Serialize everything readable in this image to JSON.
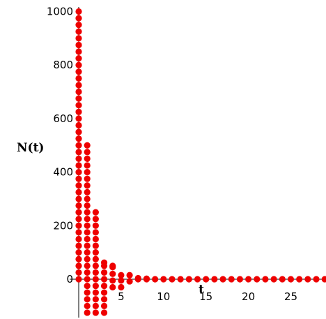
{
  "chart_data": {
    "type": "scatter",
    "title": "",
    "xlabel": "t",
    "ylabel": "N(t)",
    "xlim": [
      0,
      29
    ],
    "ylim": [
      -140,
      1000
    ],
    "x_ticks": [
      5,
      10,
      15,
      20,
      25
    ],
    "y_ticks": [
      0,
      200,
      400,
      600,
      800,
      1000
    ],
    "x_tick_labels": [
      "5",
      "10",
      "15",
      "20",
      "25"
    ],
    "y_tick_labels": [
      "0",
      "200",
      "400",
      "600",
      "800",
      "1000"
    ],
    "grid": false,
    "legend": "none",
    "marker": "filled-circle",
    "color": "#ee0000",
    "columns": [
      {
        "x": 0,
        "y_min": 0,
        "y_max": 1000
      },
      {
        "x": 1,
        "y_min": -125,
        "y_max": 500
      },
      {
        "x": 2,
        "y_min": -125,
        "y_max": 250
      },
      {
        "x": 3,
        "y_min": -125,
        "y_max": 62
      },
      {
        "x": 4,
        "y_min": -30,
        "y_max": 50
      },
      {
        "x": 5,
        "y_min": -30,
        "y_max": 15
      },
      {
        "x": 6,
        "y_min": -8,
        "y_max": 15
      },
      {
        "x": 7,
        "y_min": 0,
        "y_max": 4
      },
      {
        "x": 8,
        "y_min": 0,
        "y_max": 2
      },
      {
        "x": 9,
        "y_min": 0,
        "y_max": 0
      },
      {
        "x": 10,
        "y_min": 0,
        "y_max": 0
      },
      {
        "x": 11,
        "y_min": 0,
        "y_max": 0
      },
      {
        "x": 12,
        "y_min": 0,
        "y_max": 0
      },
      {
        "x": 13,
        "y_min": 0,
        "y_max": 0
      },
      {
        "x": 14,
        "y_min": 0,
        "y_max": 0
      },
      {
        "x": 15,
        "y_min": 0,
        "y_max": 0
      },
      {
        "x": 16,
        "y_min": 0,
        "y_max": 0
      },
      {
        "x": 17,
        "y_min": 0,
        "y_max": 0
      },
      {
        "x": 18,
        "y_min": 0,
        "y_max": 0
      },
      {
        "x": 19,
        "y_min": 0,
        "y_max": 0
      },
      {
        "x": 20,
        "y_min": 0,
        "y_max": 0
      },
      {
        "x": 21,
        "y_min": 0,
        "y_max": 0
      },
      {
        "x": 22,
        "y_min": 0,
        "y_max": 0
      },
      {
        "x": 23,
        "y_min": 0,
        "y_max": 0
      },
      {
        "x": 24,
        "y_min": 0,
        "y_max": 0
      },
      {
        "x": 25,
        "y_min": 0,
        "y_max": 0
      },
      {
        "x": 26,
        "y_min": 0,
        "y_max": 0
      },
      {
        "x": 27,
        "y_min": 0,
        "y_max": 0
      },
      {
        "x": 28,
        "y_min": 0,
        "y_max": 0
      },
      {
        "x": 29,
        "y_min": 0,
        "y_max": 0
      }
    ]
  }
}
